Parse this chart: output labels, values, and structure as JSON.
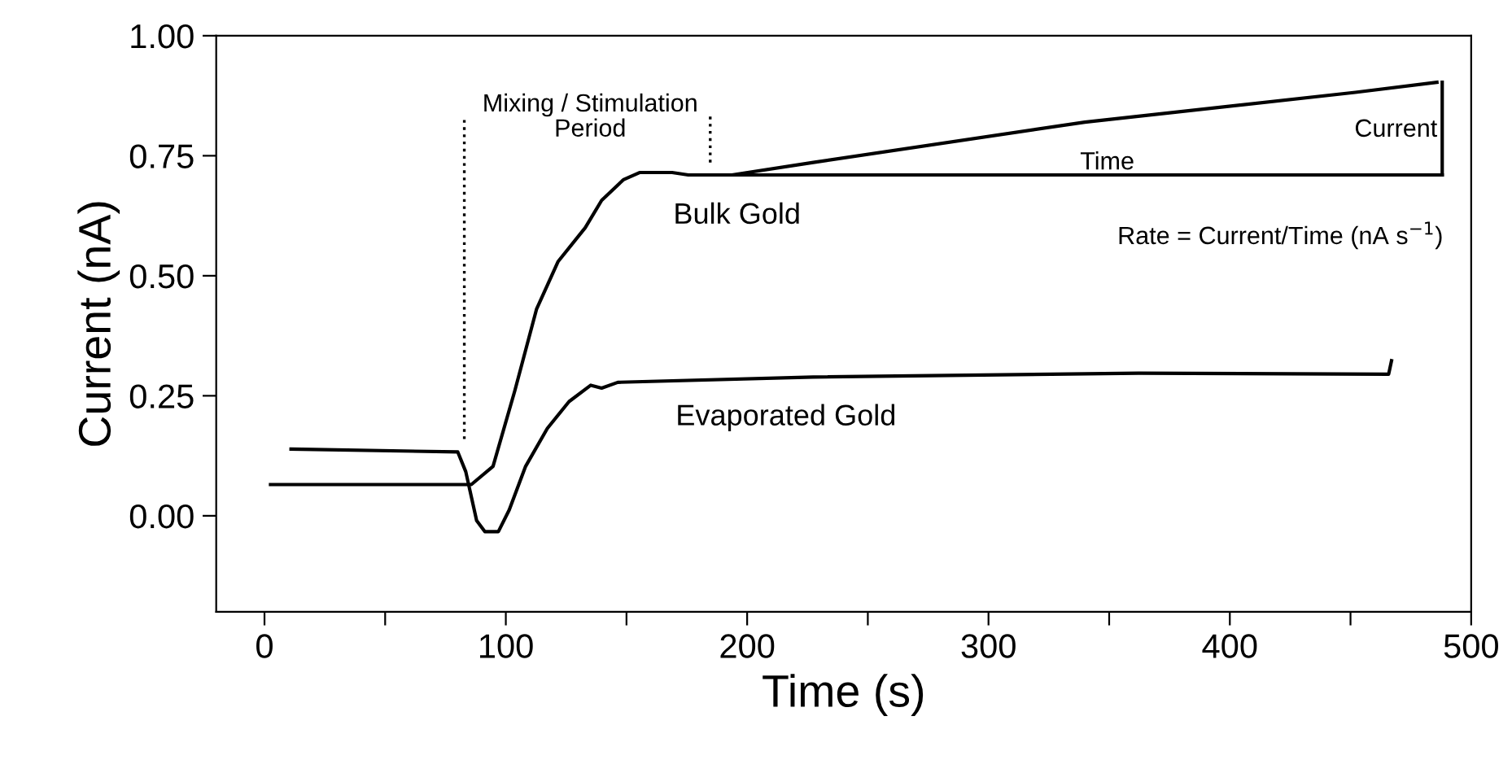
{
  "chart_data": {
    "type": "line",
    "xlabel": "Time (s)",
    "ylabel": "Current (nA)",
    "xlim": [
      -20,
      500
    ],
    "ylim": [
      -0.2,
      1.0
    ],
    "xticks": [
      0,
      {
        "value": 50,
        "label": null
      },
      100,
      {
        "value": 150,
        "label": null
      },
      200,
      {
        "value": 250,
        "label": null
      },
      300,
      {
        "value": 350,
        "label": null
      },
      400,
      {
        "value": 450,
        "label": null
      },
      500
    ],
    "yticks": [
      {
        "value": 0,
        "label": "0.00"
      },
      {
        "value": 0.25,
        "label": "0.25"
      },
      {
        "value": 0.5,
        "label": "0.50"
      },
      {
        "value": 0.75,
        "label": "0.75"
      },
      {
        "value": 1.0,
        "label": "1.00"
      }
    ],
    "grid": false,
    "legend": false,
    "marker": "none",
    "line_style": "solid",
    "series": [
      {
        "color": "#000000",
        "x": [
          2.5,
          85.7,
          94.7,
          103.7,
          112.7,
          121.7,
          132.9,
          139.7,
          148.7,
          155.4,
          168.9,
          175.6,
          193.7,
          227.4,
          339.9,
          452,
          485.8
        ],
        "values": [
          0.065,
          0.065,
          0.103,
          0.26,
          0.43,
          0.53,
          0.6,
          0.657,
          0.7,
          0.715,
          0.715,
          0.71,
          0.71,
          0.736,
          0.82,
          0.882,
          0.903
        ]
      },
      {
        "color": "#000000",
        "x": [
          11,
          80.1,
          83.4,
          87.9,
          91.3,
          96.9,
          101.4,
          108.2,
          117.2,
          126.2,
          135.2,
          139.7,
          146.4,
          227.4,
          362.3,
          465.8,
          467
        ],
        "values": [
          0.139,
          0.133,
          0.092,
          -0.01,
          -0.033,
          -0.033,
          0.012,
          0.103,
          0.182,
          0.238,
          0.272,
          0.266,
          0.278,
          0.289,
          0.297,
          0.295,
          0.323
        ]
      },
      {
        "color": "#000000",
        "x": [
          193.7,
          488
        ],
        "values": [
          0.71,
          0.71
        ]
      },
      {
        "color": "#000000",
        "x": [
          488,
          488
        ],
        "values": [
          0.71,
          0.903
        ]
      }
    ],
    "ref_lines": [
      {
        "axis": "x",
        "value": 82.8,
        "line_style": "dotted",
        "color": "#000000"
      },
      {
        "axis": "x",
        "value": 184.7,
        "line_style": "dotted",
        "color": "#000000"
      }
    ],
    "annotations": [
      "Mixing / Stimulation\nPeriod",
      "Bulk Gold",
      "Evaporated Gold",
      "Time",
      "Current",
      "Rate = Current/Time (nA s$^{−1}$)"
    ]
  }
}
